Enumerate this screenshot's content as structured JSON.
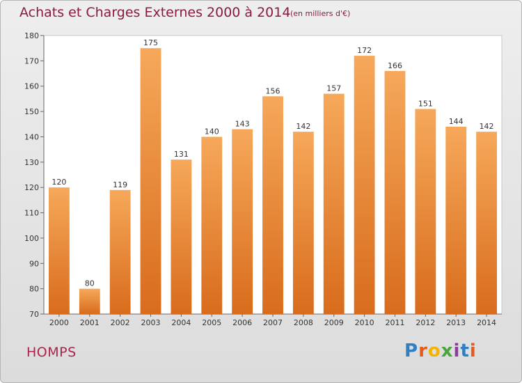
{
  "header": {
    "title": "Achats et Charges Externes 2000 à 2014",
    "subtitle": "(en milliers d'€)"
  },
  "footer": {
    "town": "HOMPS",
    "logo": {
      "letters": [
        "P",
        "r",
        "o",
        "x",
        "i",
        "t",
        "i"
      ],
      "colors": [
        "#2f7fc1",
        "#e85a1a",
        "#f2b400",
        "#4aa63c",
        "#8b3d9e",
        "#2f7fc1",
        "#e85a1a"
      ]
    }
  },
  "chart_data": {
    "type": "bar",
    "categories": [
      "2000",
      "2001",
      "2002",
      "2003",
      "2004",
      "2005",
      "2006",
      "2007",
      "2008",
      "2009",
      "2010",
      "2011",
      "2012",
      "2013",
      "2014"
    ],
    "values": [
      120,
      80,
      119,
      175,
      131,
      140,
      143,
      156,
      142,
      157,
      172,
      166,
      151,
      144,
      142
    ],
    "title": "Achats et Charges Externes 2000 à 2014",
    "ylim": [
      70,
      180
    ],
    "yticks": [
      70,
      80,
      90,
      100,
      110,
      120,
      130,
      140,
      150,
      160,
      170,
      180
    ],
    "grid": false,
    "colors": {
      "bar_top": "#f6a85a",
      "bar_bottom": "#d86c1c",
      "plot_bg": "#ffffff"
    }
  }
}
